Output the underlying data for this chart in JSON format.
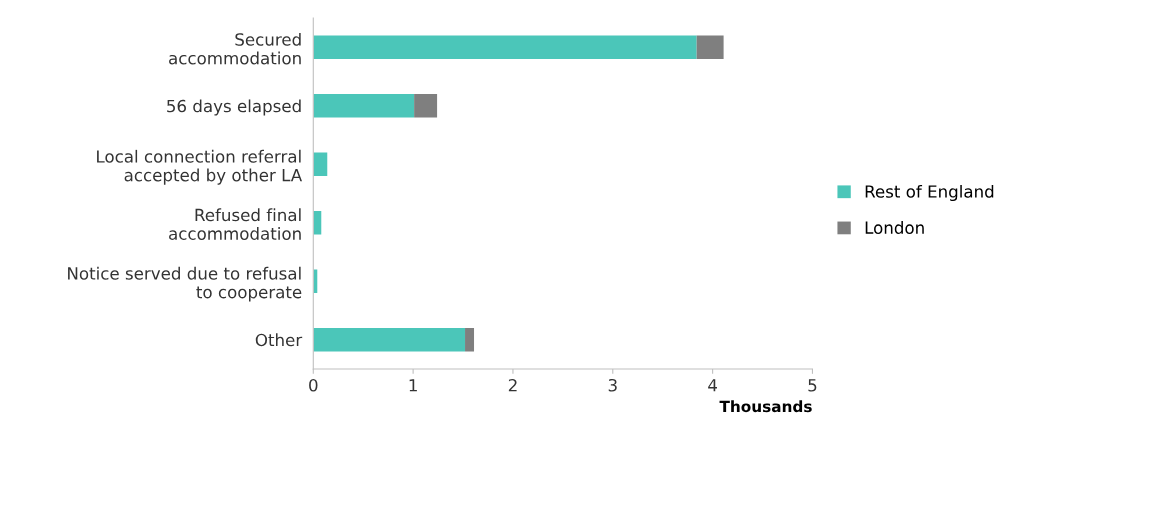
{
  "chart_data": {
    "type": "bar",
    "orientation": "horizontal",
    "stacked": true,
    "categories": [
      "Secured\naccommodation",
      "56 days elapsed",
      "Local connection referral\naccepted by other LA",
      "Refused final\naccommodation",
      "Notice served due to refusal\nto cooperate",
      "Other"
    ],
    "series": [
      {
        "name": "Rest of England",
        "color": "#4bc6b9",
        "values": [
          3.84,
          1.01,
          0.14,
          0.08,
          0.04,
          1.52
        ]
      },
      {
        "name": "London",
        "color": "#7f7f7f",
        "values": [
          0.27,
          0.23,
          0,
          0,
          0,
          0.09
        ]
      }
    ],
    "xlabel": "Thousands",
    "xlim": [
      0,
      5
    ],
    "xticks": [
      0,
      1,
      2,
      3,
      4,
      5
    ],
    "grid": false,
    "legend": "right"
  }
}
